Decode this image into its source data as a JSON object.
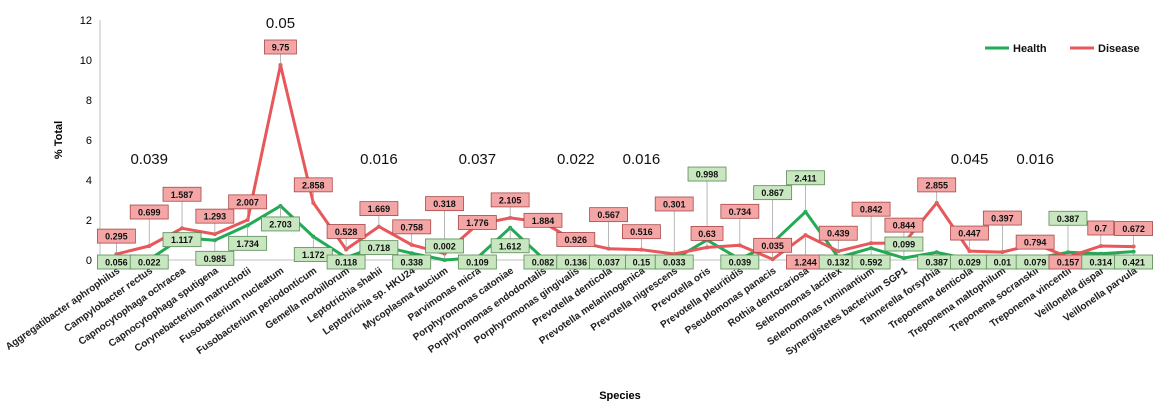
{
  "chart_data": {
    "type": "line",
    "xlabel": "Species",
    "ylabel": "% Total",
    "ylim": [
      0,
      12
    ],
    "yticks": [
      "0",
      "2",
      "4",
      "6",
      "8",
      "10",
      "12"
    ],
    "grid": false,
    "legend_position": "top-right",
    "colors": {
      "Health": "#22aa55",
      "Disease": "#e8575a",
      "health_box": "#c8e6c0",
      "disease_box": "#f4a6a6"
    },
    "categories": [
      "Aggregatibacter aphrophilus",
      "Campylobacter rectus",
      "Capnocytophaga ochracea",
      "Capnocytophaga sputigena",
      "Corynebacterium matruchotii",
      "Fusobacterium nucleatum",
      "Fusobacterium periodonticum",
      "Gemella morbillorum",
      "Leptotrichia shahii",
      "Leptotrichia sp. HKU24",
      "Mycoplasma faucium",
      "Parvimonas micra",
      "Porphyromonas catoniae",
      "Porphyromonas endodontalis",
      "Porphyromonas gingivalis",
      "Prevotella denticola",
      "Prevotella melaninogenica",
      "Prevotella nigrescens",
      "Prevotella oris",
      "Prevotella pleuritidis",
      "Pseudomonas panacis",
      "Rothia dentocariosa",
      "Selenomonas lactifex",
      "Selenomonas ruminantium",
      "Synergistetes bacterium SGP1",
      "Tannerella forsythia",
      "Treponema denticola",
      "Treponema maltophilum",
      "Treponema socranskii",
      "Treponema vincentii",
      "Veillonella dispar",
      "Veillonella parvula"
    ],
    "series": [
      {
        "name": "Health",
        "values": [
          0.056,
          0.022,
          1.117,
          0.985,
          1.734,
          2.703,
          1.172,
          0.118,
          0.718,
          0.338,
          0.002,
          0.109,
          1.612,
          0.082,
          0.136,
          0.037,
          0.15,
          0.033,
          0.998,
          0.039,
          0.867,
          2.411,
          0.132,
          0.592,
          0.099,
          0.387,
          0.029,
          0.01,
          0.079,
          0.387,
          0.314,
          0.421
        ]
      },
      {
        "name": "Disease",
        "values": [
          0.295,
          0.699,
          1.587,
          1.293,
          2.007,
          9.75,
          2.858,
          0.528,
          1.669,
          0.758,
          0.318,
          1.776,
          2.105,
          1.884,
          0.926,
          0.567,
          0.516,
          0.301,
          0.63,
          0.734,
          0.035,
          1.244,
          0.439,
          0.842,
          0.844,
          2.855,
          0.447,
          0.397,
          0.794,
          0.157,
          0.7,
          0.672
        ]
      }
    ],
    "value_labels": {
      "Health": [
        "0.056",
        "0.022",
        "1.117",
        "0.985",
        "1.734",
        "2.703",
        "1.172",
        "0.118",
        "0.718",
        "0.338",
        "0.002",
        "0.109",
        "1.612",
        "0.082",
        "0.136",
        "0.037",
        "0.15",
        "0.033",
        "0.998",
        "0.039",
        "0.867",
        "2.411",
        "0.132",
        "0.592",
        "0.099",
        "0.387",
        "0.029",
        "0.01",
        "0.079",
        "0.387",
        "0.314",
        "0.421"
      ],
      "Disease": [
        "0.295",
        "0.699",
        "1.587",
        "1.293",
        "2.007",
        "9.75",
        "2.858",
        "0.528",
        "1.669",
        "0.758",
        "0.318",
        "1.776",
        "2.105",
        "1.884",
        "0.926",
        "0.567",
        "0.516",
        "0.301",
        "0.63",
        "0.734",
        "0.035",
        "1.244",
        "0.439",
        "0.842",
        "0.844",
        "2.855",
        "0.447",
        "0.397",
        "0.794",
        "0.157",
        "0.7",
        "0.672"
      ]
    },
    "p_values": [
      {
        "category_index": 1,
        "text": "0.039"
      },
      {
        "category_index": 5,
        "text": "0.05"
      },
      {
        "category_index": 8,
        "text": "0.016"
      },
      {
        "category_index": 11,
        "text": "0.037"
      },
      {
        "category_index": 14,
        "text": "0.022"
      },
      {
        "category_index": 16,
        "text": "0.016"
      },
      {
        "category_index": 26,
        "text": "0.045"
      },
      {
        "category_index": 28,
        "text": "0.016"
      }
    ]
  }
}
